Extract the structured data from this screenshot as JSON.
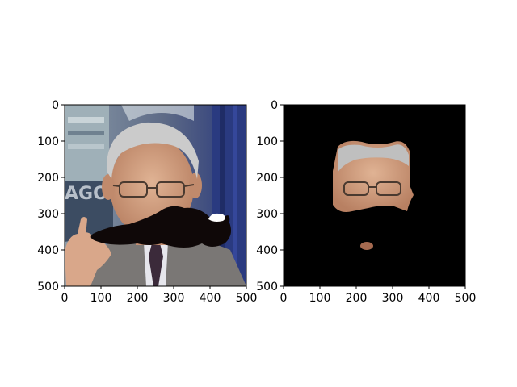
{
  "chart_data": [
    {
      "type": "image",
      "title": "",
      "xlabel": "",
      "ylabel": "",
      "xlim": [
        0,
        500
      ],
      "ylim": [
        500,
        0
      ],
      "xticks": [
        0,
        100,
        200,
        300,
        400,
        500
      ],
      "yticks": [
        0,
        100,
        200,
        300,
        400,
        500
      ],
      "xtick_labels": [
        "0",
        "100",
        "200",
        "300",
        "400",
        "500"
      ],
      "ytick_labels": [
        "0",
        "100",
        "200",
        "300",
        "400",
        "500"
      ],
      "content": "photo-with-mustache-overlay"
    },
    {
      "type": "image",
      "title": "",
      "xlabel": "",
      "ylabel": "",
      "xlim": [
        0,
        500
      ],
      "ylim": [
        500,
        0
      ],
      "xticks": [
        0,
        100,
        200,
        300,
        400,
        500
      ],
      "yticks": [
        0,
        100,
        200,
        300,
        400,
        500
      ],
      "xtick_labels": [
        "0",
        "100",
        "200",
        "300",
        "400",
        "500"
      ],
      "ytick_labels": [
        "0",
        "100",
        "200",
        "300",
        "400",
        "500"
      ],
      "content": "masked-face-on-black"
    }
  ],
  "colors": {
    "axes_edge": "#000000",
    "mask_background": "#000000",
    "mustache": "#0f0808",
    "skin": "#d3a384",
    "hair": "#cfcfcf",
    "suit": "#7a7775",
    "backdrop_blue": "#2e3d78"
  }
}
